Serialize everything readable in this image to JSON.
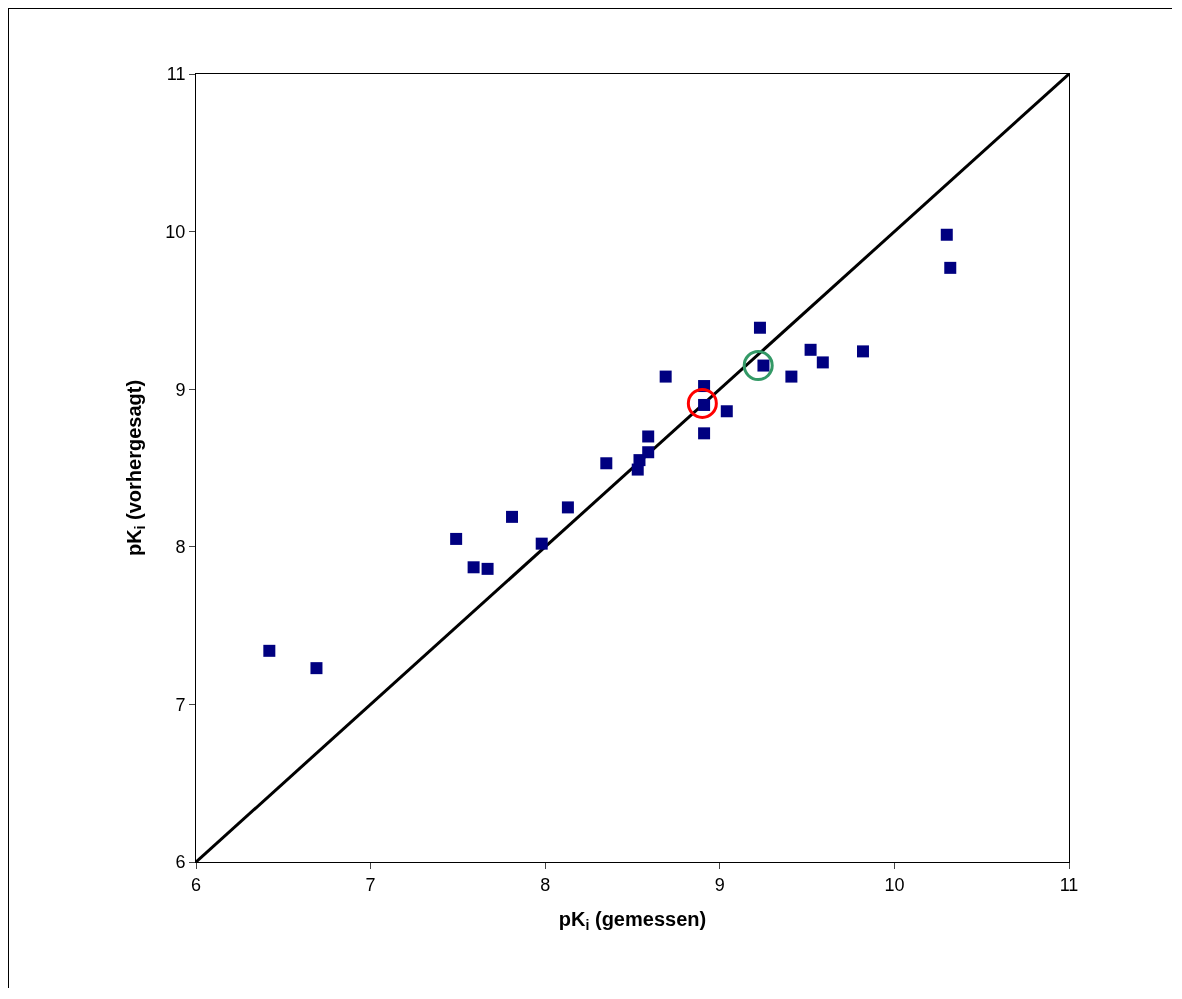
{
  "chart_data": {
    "type": "scatter",
    "xlabel": "pK$_{i}$ (gemessen)",
    "ylabel": "pK$_{i}$ (vorhergesagt)",
    "xlim": [
      6,
      11
    ],
    "xticks": [
      6,
      7,
      8,
      9,
      10,
      11
    ],
    "ylim": [
      6,
      11
    ],
    "yticks": [
      6,
      7,
      8,
      9,
      10,
      11
    ],
    "marker": "square",
    "series": [
      {
        "type": "line",
        "color": "#000000",
        "marker": "none",
        "line_style": "solid",
        "x": [
          6,
          11
        ],
        "values": [
          6,
          11
        ]
      },
      {
        "color": "#000080",
        "x": [
          6.42,
          6.69,
          7.49,
          7.59,
          7.67,
          7.81,
          7.98,
          8.13,
          8.35,
          8.53,
          8.54,
          8.59,
          8.59,
          8.69,
          8.91,
          8.91,
          8.91,
          9.04,
          9.23,
          9.25,
          9.41,
          9.52,
          9.59,
          9.82,
          10.3,
          10.32
        ],
        "values": [
          7.34,
          7.23,
          8.05,
          7.87,
          7.86,
          8.19,
          8.02,
          8.25,
          8.53,
          8.49,
          8.55,
          8.6,
          8.7,
          9.08,
          9.02,
          8.9,
          8.72,
          8.86,
          9.39,
          9.15,
          9.08,
          9.25,
          9.17,
          9.24,
          9.98,
          9.77
        ]
      },
      {
        "type": "scatter",
        "color": "#ff0000",
        "marker": "circle",
        "x": [
          8.9
        ],
        "values": [
          8.91
        ]
      },
      {
        "type": "scatter",
        "color": "#339966",
        "marker": "circle",
        "x": [
          9.22
        ],
        "values": [
          9.15
        ]
      }
    ]
  }
}
